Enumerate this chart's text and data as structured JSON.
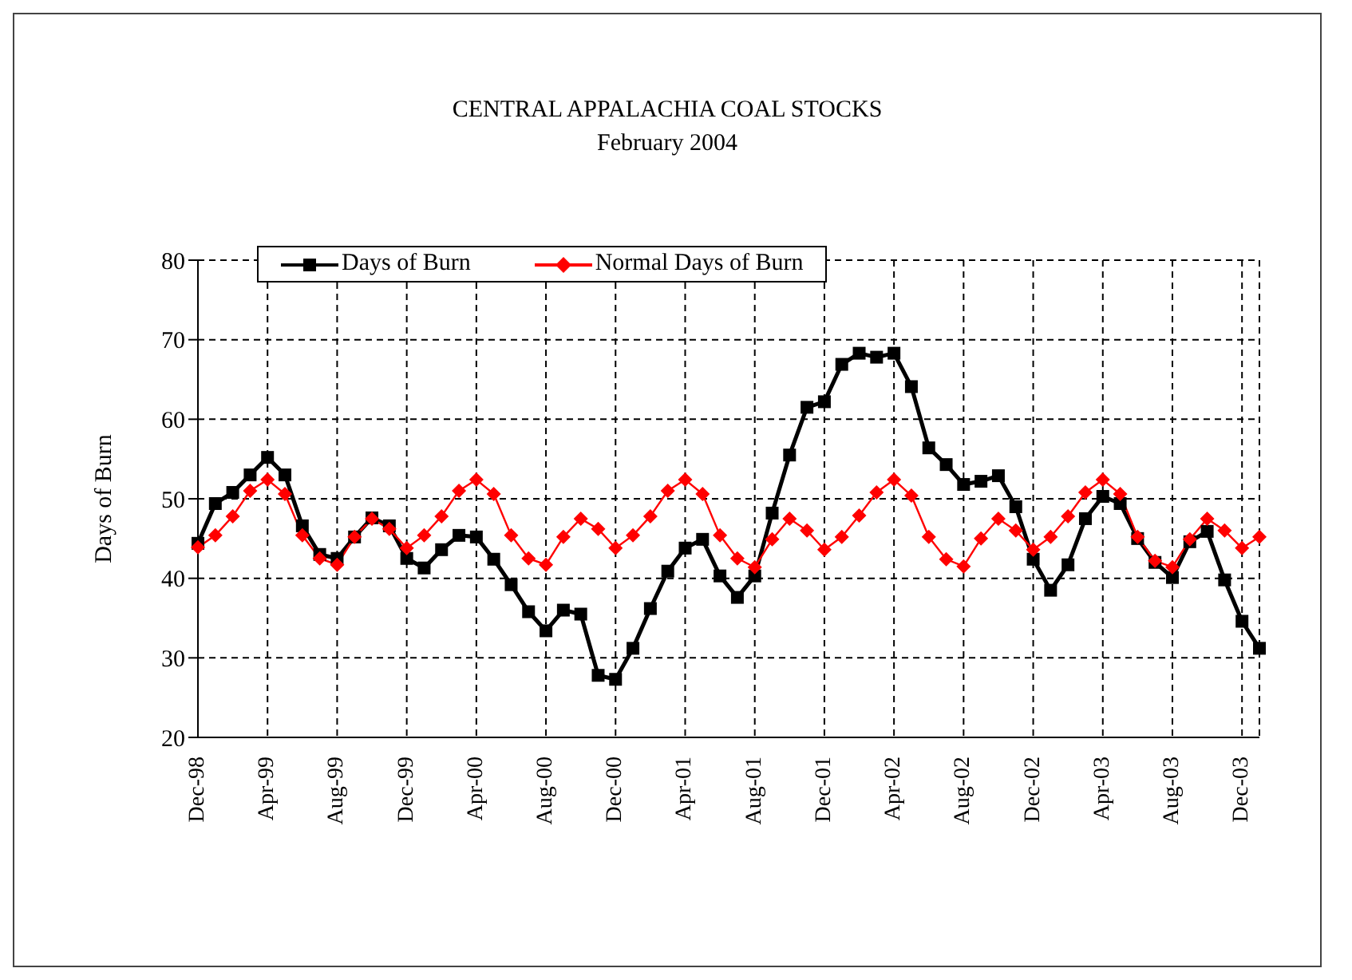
{
  "chart_data": {
    "type": "line",
    "title": "CENTRAL APPALACHIA COAL STOCKS",
    "subtitle": "February 2004",
    "ylabel": "Days of Burn",
    "categories": [
      "Dec-98",
      null,
      null,
      null,
      "Apr-99",
      null,
      null,
      null,
      "Aug-99",
      null,
      null,
      null,
      "Dec-99",
      null,
      null,
      null,
      "Apr-00",
      null,
      null,
      null,
      "Aug-00",
      null,
      null,
      null,
      "Dec-00",
      null,
      null,
      null,
      "Apr-01",
      null,
      null,
      null,
      "Aug-01",
      null,
      null,
      null,
      "Dec-01",
      null,
      null,
      null,
      "Apr-02",
      null,
      null,
      null,
      "Aug-02",
      null,
      null,
      null,
      "Dec-02",
      null,
      null,
      null,
      "Apr-03",
      null,
      null,
      null,
      "Aug-03",
      null,
      null,
      null,
      "Dec-03",
      null
    ],
    "series": [
      {
        "name": "Days of Burn",
        "color": "#000000",
        "marker": "square",
        "values": [
          44.4,
          49.4,
          50.8,
          53,
          55.2,
          53,
          46.6,
          43,
          42.5,
          45.2,
          47.6,
          46.6,
          42.5,
          41.3,
          43.6,
          45.4,
          45.2,
          42.4,
          39.2,
          35.8,
          33.4,
          36,
          35.5,
          27.8,
          27.3,
          31.2,
          36.2,
          40.9,
          43.8,
          44.9,
          40.3,
          37.6,
          40.3,
          48.2,
          55.5,
          61.5,
          62.2,
          66.9,
          68.3,
          67.8,
          68.3,
          64.1,
          56.4,
          54.3,
          51.8,
          52.2,
          52.9,
          49,
          42.4,
          38.5,
          41.7,
          47.5,
          50.3,
          49.4,
          45,
          42,
          40.1,
          44.6,
          45.9,
          39.8,
          34.6,
          31.2
        ]
      },
      {
        "name": "Normal Days of Burn",
        "color": "#ff0000",
        "marker": "diamond",
        "values": [
          43.9,
          45.4,
          47.8,
          51,
          52.4,
          50.6,
          45.4,
          42.5,
          41.7,
          45.2,
          47.5,
          46.2,
          43.8,
          45.4,
          47.8,
          51,
          52.4,
          50.6,
          45.4,
          42.5,
          41.7,
          45.2,
          47.5,
          46.2,
          43.8,
          45.4,
          47.8,
          51,
          52.4,
          50.6,
          45.4,
          42.5,
          41.4,
          44.9,
          47.5,
          46,
          43.6,
          45.2,
          47.9,
          50.8,
          52.4,
          50.4,
          45.2,
          42.4,
          41.5,
          45,
          47.5,
          46,
          43.6,
          45.2,
          47.8,
          50.8,
          52.4,
          50.6,
          45.2,
          42.2,
          41.4,
          44.9,
          47.5,
          46,
          43.8,
          45.2
        ]
      }
    ],
    "ylim": [
      20,
      80
    ],
    "yticks": [
      20,
      30,
      40,
      50,
      60,
      70,
      80
    ],
    "grid": true,
    "legend": "top left",
    "line_style": "solid"
  }
}
